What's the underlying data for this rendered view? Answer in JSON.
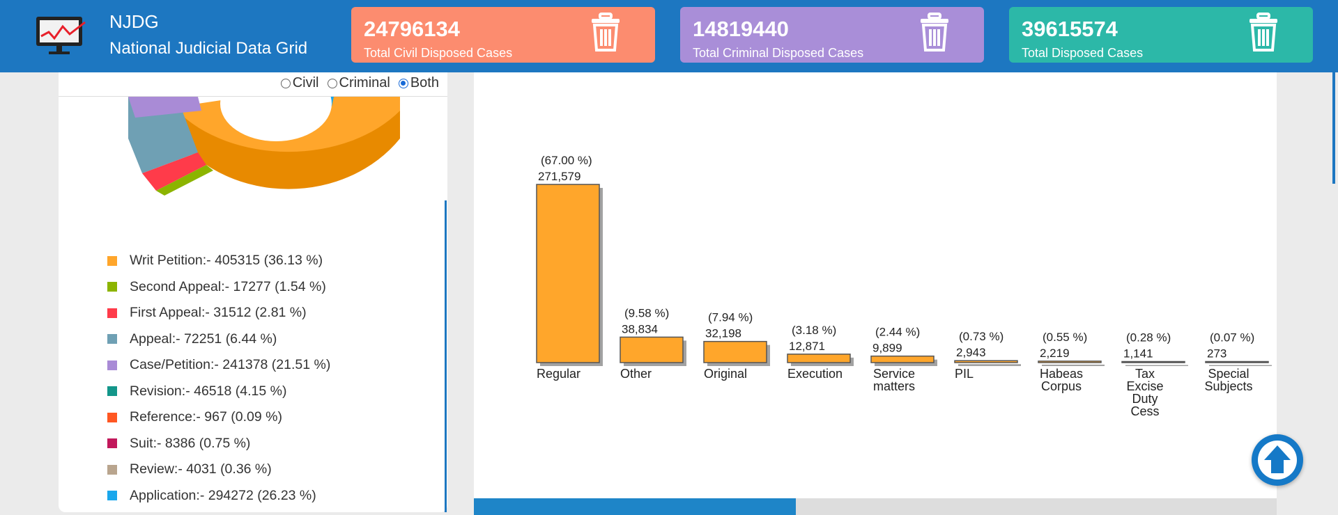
{
  "header": {
    "brand_short": "NJDG",
    "brand_long": "National Judicial Data Grid",
    "stats": [
      {
        "value": "24796134",
        "label": "Total Civil Disposed Cases",
        "color": "#fc8c6f"
      },
      {
        "value": "14819440",
        "label": "Total Criminal Disposed Cases",
        "color": "#a98ed8"
      },
      {
        "value": "39615574",
        "label": "Total Disposed Cases",
        "color": "#2cb8a8"
      }
    ]
  },
  "filter": {
    "options": [
      "Civil",
      "Criminal",
      "Both"
    ],
    "selected": "Both"
  },
  "legend": [
    {
      "text": "Writ Petition:- 405315 (36.13 %)",
      "color": "#ffa62b"
    },
    {
      "text": "Second Appeal:- 17277 (1.54 %)",
      "color": "#8cb400"
    },
    {
      "text": "First Appeal:- 31512 (2.81 %)",
      "color": "#ff3b4a"
    },
    {
      "text": "Appeal:- 72251 (6.44 %)",
      "color": "#6fa0b4"
    },
    {
      "text": "Case/Petition:- 241378 (21.51 %)",
      "color": "#a98bd6"
    },
    {
      "text": "Revision:- 46518 (4.15 %)",
      "color": "#13968a"
    },
    {
      "text": "Reference:- 967 (0.09 %)",
      "color": "#ff5722"
    },
    {
      "text": "Suit:- 8386 (0.75 %)",
      "color": "#c2185b"
    },
    {
      "text": "Review:- 4031 (0.36 %)",
      "color": "#b9a58e"
    },
    {
      "text": "Application:- 294272 (26.23 %)",
      "color": "#1aa7ec"
    }
  ],
  "chart_data": {
    "type": "bar",
    "categories": [
      "Regular",
      "Other",
      "Original",
      "Execution",
      "Service matters",
      "PIL",
      "Habeas Corpus",
      "Tax Excise Duty Cess",
      "Special Subjects"
    ],
    "values": [
      271579,
      38834,
      32198,
      12871,
      9899,
      2943,
      2219,
      1141,
      273
    ],
    "value_labels": [
      "271,579",
      "38,834",
      "32,198",
      "12,871",
      "9,899",
      "2,943",
      "2,219",
      "1,141",
      "273"
    ],
    "percent_labels": [
      "(67.00 %)",
      "(9.58 %)",
      "(7.94 %)",
      "(3.18 %)",
      "(2.44 %)",
      "(0.73 %)",
      "(0.55 %)",
      "(0.28 %)",
      "(0.07 %)"
    ],
    "ylim": [
      0,
      271579
    ],
    "bar_color": "#ffa62b",
    "title": "",
    "xlabel": "",
    "ylabel": ""
  }
}
